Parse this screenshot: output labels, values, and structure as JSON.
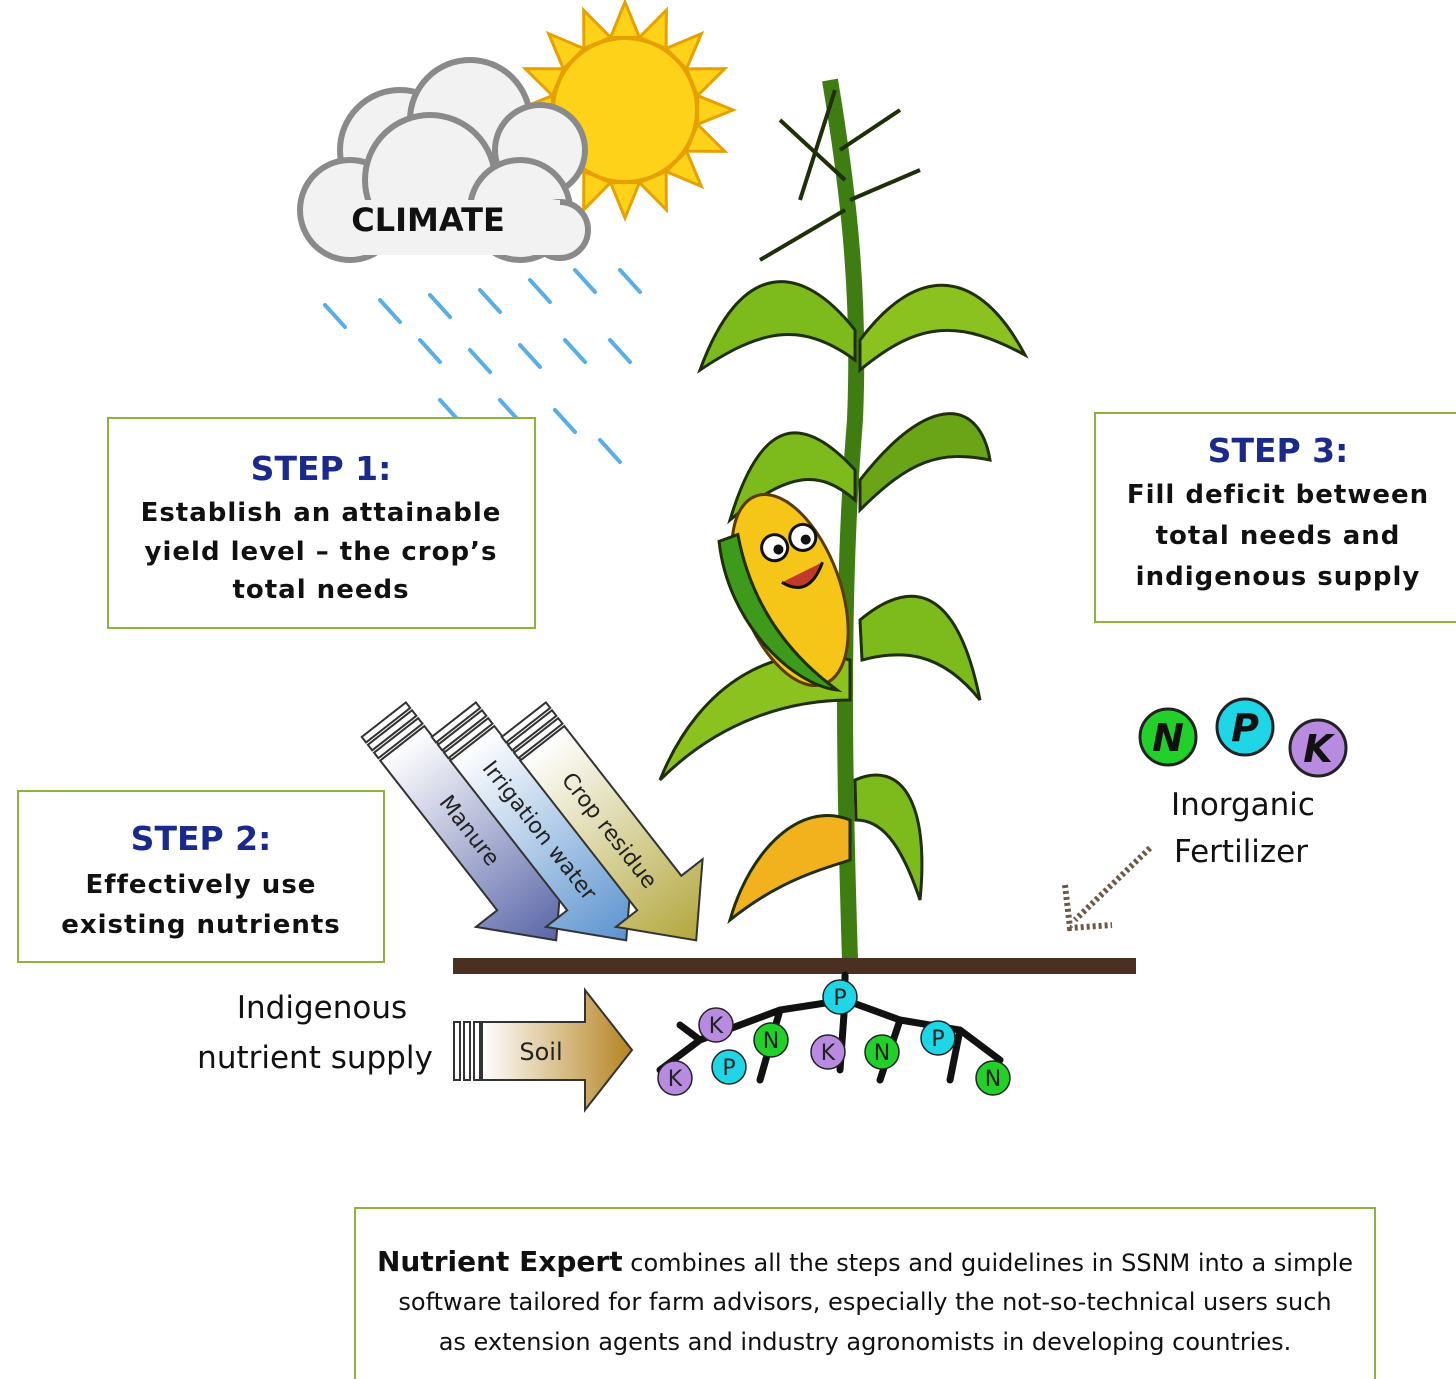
{
  "climate": "CLIMATE",
  "steps": [
    {
      "title": "STEP 1:",
      "lines": [
        "Establish an attainable",
        "yield level – the crop’s",
        "total needs"
      ]
    },
    {
      "title": "STEP 2:",
      "lines": [
        "Effectively use",
        "existing nutrients"
      ]
    },
    {
      "title": "STEP 3:",
      "lines": [
        "Fill deficit between",
        "total needs and",
        "indigenous supply"
      ]
    }
  ],
  "organic_inputs": [
    "Manure",
    "Irrigation water",
    "Crop residue"
  ],
  "indigenous_supply": {
    "lines": [
      "Indigenous",
      "nutrient supply"
    ],
    "arrow": "Soil"
  },
  "root_nutrients": [
    "P",
    "K",
    "N",
    "K",
    "N",
    "P",
    "K",
    "P",
    "N"
  ],
  "fertilizer": {
    "nutrients": [
      "N",
      "P",
      "K"
    ],
    "lines": [
      "Inorganic",
      "Fertilizer"
    ]
  },
  "footer": {
    "highlight": "Nutrient Expert",
    "lines": [
      "combines all the steps and guidelines in SSNM into a simple",
      "software tailored for farm advisors, especially the not-so-technical users such",
      "as extension agents and industry agronomists in developing countries."
    ]
  }
}
